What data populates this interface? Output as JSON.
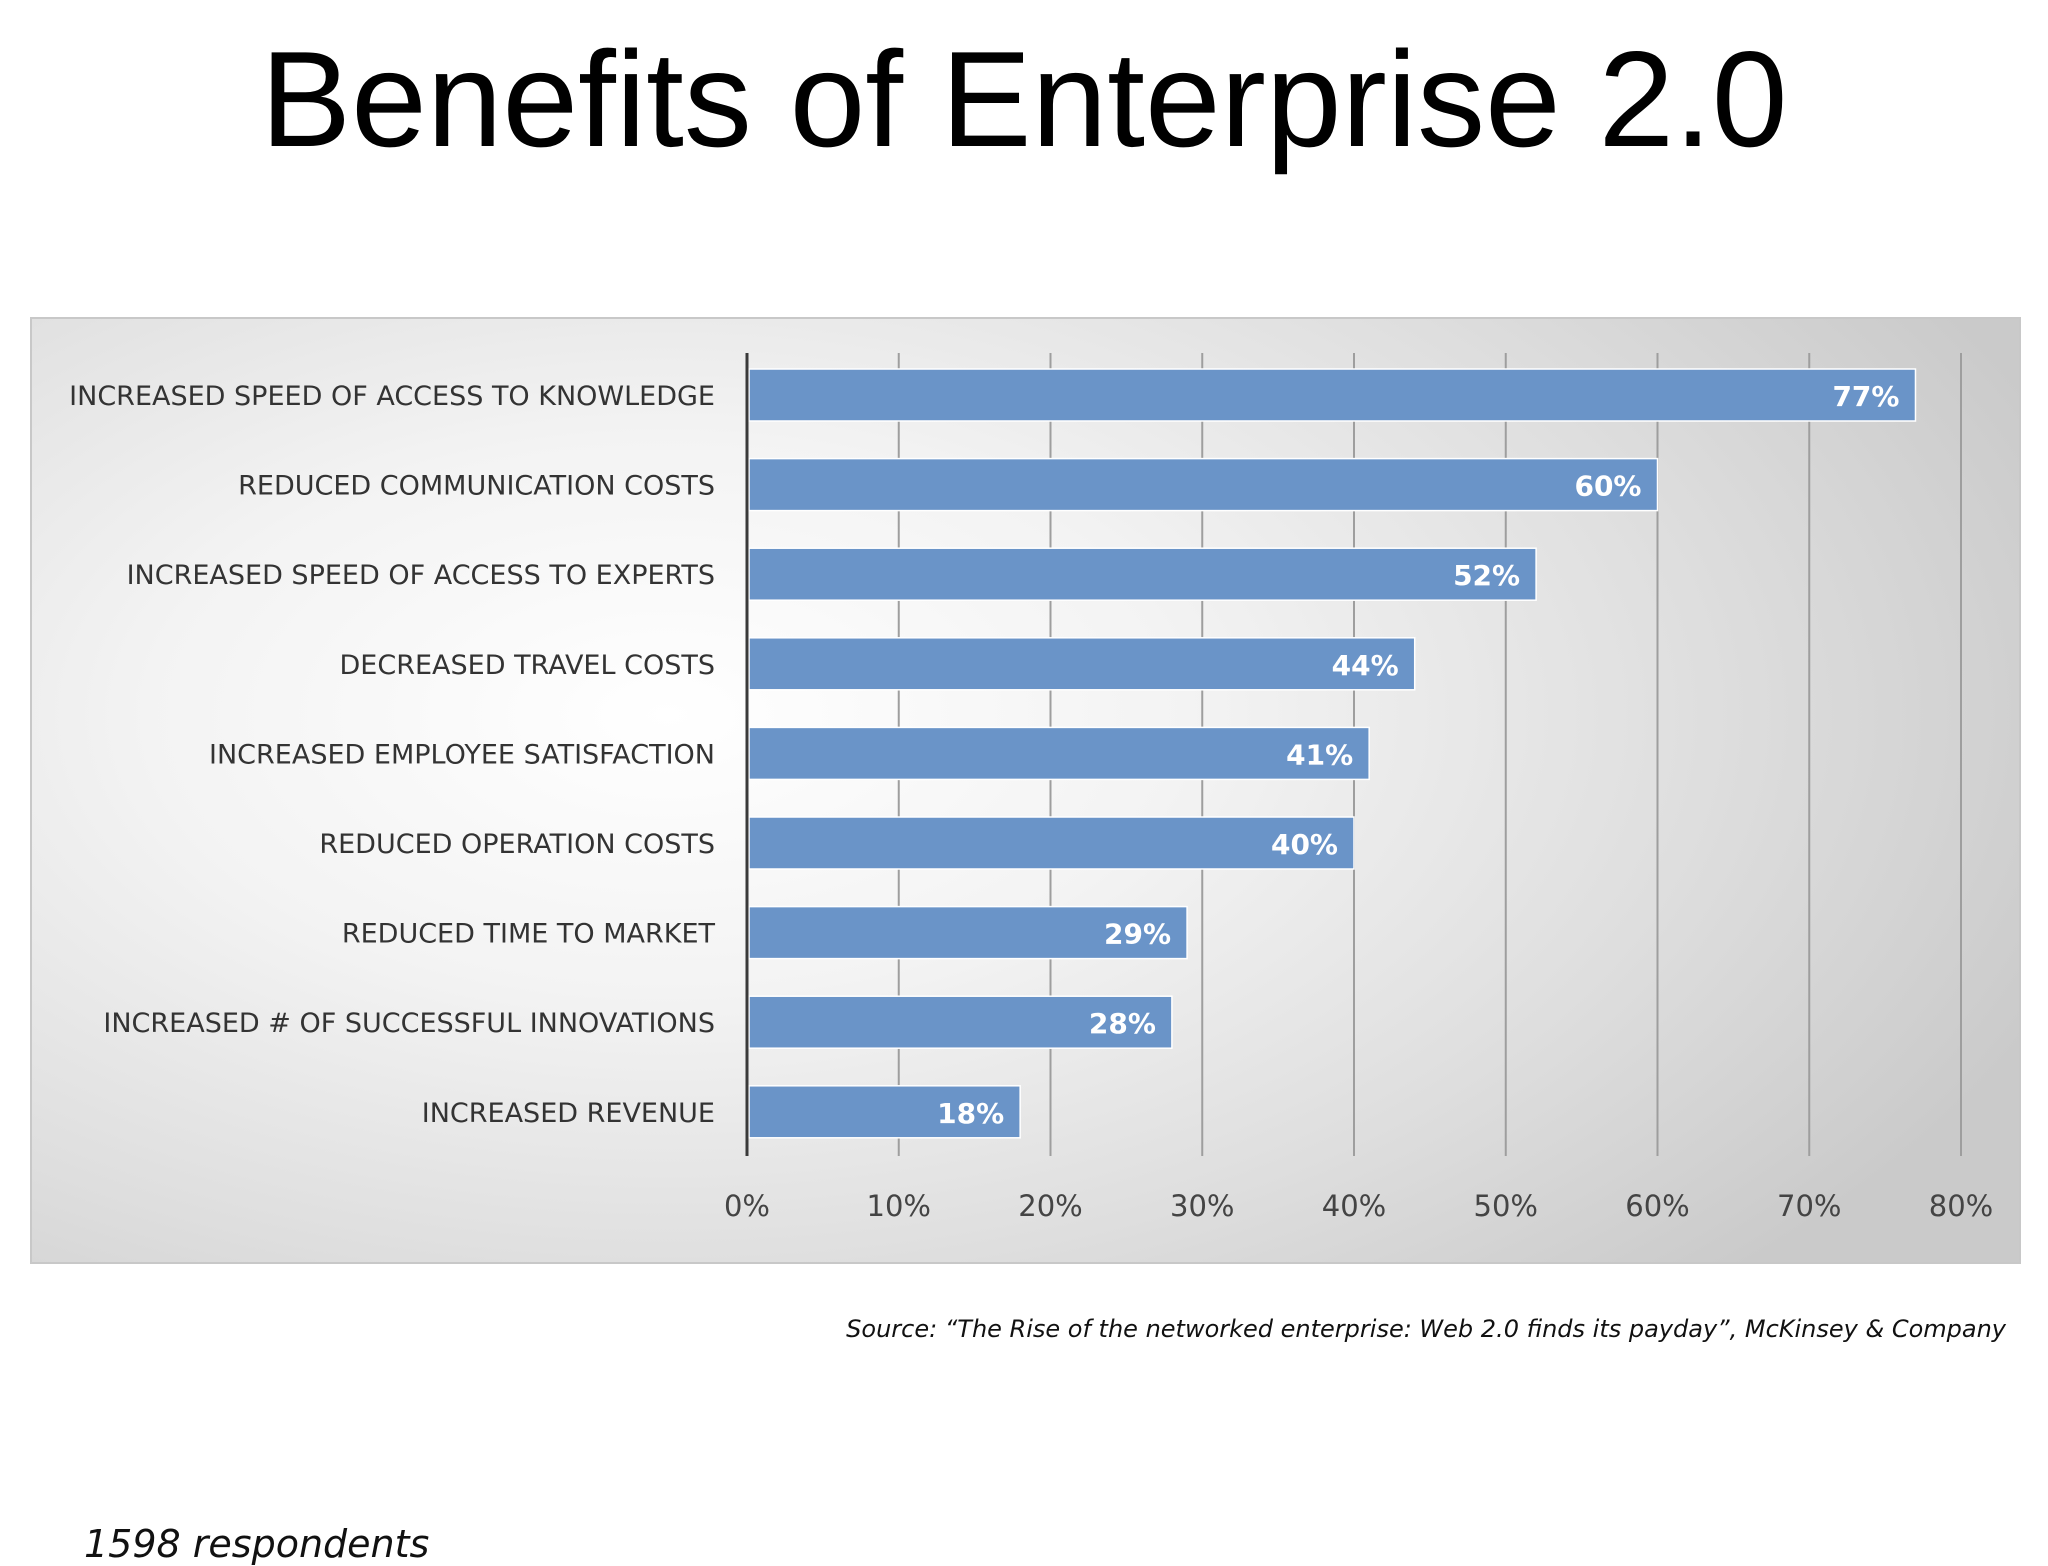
{
  "slide": {
    "title": "Benefits of Enterprise 2.0",
    "respondents": "1598 respondents",
    "source": "Source: “The Rise of the networked enterprise: Web 2.0 finds its payday”, McKinsey & Company"
  },
  "chart_data": {
    "type": "bar",
    "orientation": "horizontal",
    "categories": [
      "INCREASED SPEED OF ACCESS TO KNOWLEDGE",
      "REDUCED COMMUNICATION COSTS",
      "INCREASED SPEED OF ACCESS TO EXPERTS",
      "DECREASED TRAVEL COSTS",
      "INCREASED EMPLOYEE SATISFACTION",
      "REDUCED OPERATION COSTS",
      "REDUCED TIME TO MARKET",
      "INCREASED # OF SUCCESSFUL INNOVATIONS",
      "INCREASED REVENUE"
    ],
    "values": [
      77,
      60,
      52,
      44,
      41,
      40,
      29,
      28,
      18
    ],
    "data_labels": [
      "77%",
      "60%",
      "52%",
      "44%",
      "41%",
      "40%",
      "29%",
      "28%",
      "18%"
    ],
    "xlim": [
      0,
      80
    ],
    "x_ticks": [
      0,
      10,
      20,
      30,
      40,
      50,
      60,
      70,
      80
    ],
    "x_tick_labels": [
      "0%",
      "10%",
      "20%",
      "30%",
      "40%",
      "50%",
      "60%",
      "70%",
      "80%"
    ],
    "grid": true,
    "legend": "none",
    "colors": {
      "bar": "#6a94c8",
      "bar_label": "#ffffff",
      "gridline": "#9e9e9e",
      "axis": "#3a3a3a",
      "category_text": "#333333",
      "tick_text": "#444444"
    }
  }
}
